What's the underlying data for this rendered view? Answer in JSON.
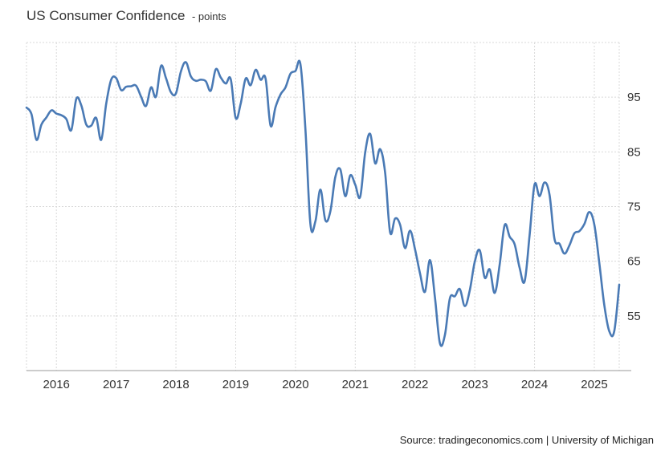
{
  "header": {
    "title": "US Consumer Confidence",
    "unit": "- points"
  },
  "source": "Source: tradingeconomics.com | University of Michigan",
  "colors": {
    "line": "#4a7ab5",
    "grid": "#d9d9d9",
    "axis": "#999999"
  },
  "chart_data": {
    "type": "line",
    "title": "US Consumer Confidence",
    "ylabel": "",
    "xlabel": "",
    "ylim": [
      45,
      105
    ],
    "xlim": [
      "2015-07",
      "2025-06"
    ],
    "grid": true,
    "y_axis_side": "right",
    "x_ticks": [
      "2016",
      "2017",
      "2018",
      "2019",
      "2020",
      "2021",
      "2022",
      "2023",
      "2024",
      "2025"
    ],
    "y_ticks": [
      55,
      65,
      75,
      85,
      95
    ],
    "series": [
      {
        "x": [
          "2015-07",
          "2015-08",
          "2015-09",
          "2015-10",
          "2015-11",
          "2015-12",
          "2016-01",
          "2016-02",
          "2016-03",
          "2016-04",
          "2016-05",
          "2016-06",
          "2016-07",
          "2016-08",
          "2016-09",
          "2016-10",
          "2016-11",
          "2016-12",
          "2017-01",
          "2017-02",
          "2017-03",
          "2017-04",
          "2017-05",
          "2017-06",
          "2017-07",
          "2017-08",
          "2017-09",
          "2017-10",
          "2017-11",
          "2017-12",
          "2018-01",
          "2018-02",
          "2018-03",
          "2018-04",
          "2018-05",
          "2018-06",
          "2018-07",
          "2018-08",
          "2018-09",
          "2018-10",
          "2018-11",
          "2018-12",
          "2019-01",
          "2019-02",
          "2019-03",
          "2019-04",
          "2019-05",
          "2019-06",
          "2019-07",
          "2019-08",
          "2019-09",
          "2019-10",
          "2019-11",
          "2019-12",
          "2020-01",
          "2020-02",
          "2020-03",
          "2020-04",
          "2020-05",
          "2020-06",
          "2020-07",
          "2020-08",
          "2020-09",
          "2020-10",
          "2020-11",
          "2020-12",
          "2021-01",
          "2021-02",
          "2021-03",
          "2021-04",
          "2021-05",
          "2021-06",
          "2021-07",
          "2021-08",
          "2021-09",
          "2021-10",
          "2021-11",
          "2021-12",
          "2022-01",
          "2022-02",
          "2022-03",
          "2022-04",
          "2022-05",
          "2022-06",
          "2022-07",
          "2022-08",
          "2022-09",
          "2022-10",
          "2022-11",
          "2022-12",
          "2023-01",
          "2023-02",
          "2023-03",
          "2023-04",
          "2023-05",
          "2023-06",
          "2023-07",
          "2023-08",
          "2023-09",
          "2023-10",
          "2023-11",
          "2023-12",
          "2024-01",
          "2024-02",
          "2024-03",
          "2024-04",
          "2024-05",
          "2024-06",
          "2024-07",
          "2024-08",
          "2024-09",
          "2024-10",
          "2024-11",
          "2024-12",
          "2025-01",
          "2025-02",
          "2025-03",
          "2025-04",
          "2025-05",
          "2025-06"
        ],
        "values": [
          93.1,
          91.9,
          87.2,
          90.0,
          91.3,
          92.6,
          92.0,
          91.7,
          91.0,
          89.0,
          94.7,
          93.5,
          90.0,
          89.8,
          91.2,
          87.2,
          93.8,
          98.2,
          98.5,
          96.3,
          96.9,
          97.0,
          97.1,
          95.1,
          93.4,
          96.8,
          95.1,
          100.7,
          98.5,
          95.9,
          95.7,
          99.7,
          101.4,
          98.8,
          98.0,
          98.2,
          97.9,
          96.2,
          100.1,
          98.6,
          97.5,
          98.3,
          91.2,
          93.8,
          98.4,
          97.2,
          100.0,
          98.2,
          98.4,
          89.8,
          93.2,
          95.5,
          96.8,
          99.3,
          99.8,
          101.0,
          89.1,
          71.8,
          72.3,
          78.1,
          72.5,
          74.1,
          80.4,
          81.8,
          76.9,
          80.7,
          79.0,
          76.8,
          84.9,
          88.3,
          82.9,
          85.5,
          81.2,
          70.3,
          72.8,
          71.7,
          67.4,
          70.6,
          67.2,
          62.8,
          59.4,
          65.2,
          58.4,
          50.0,
          51.5,
          58.2,
          58.6,
          59.9,
          56.8,
          59.7,
          64.9,
          67.0,
          62.0,
          63.5,
          59.2,
          64.4,
          71.6,
          69.5,
          68.1,
          63.8,
          61.3,
          69.7,
          79.0,
          76.9,
          79.4,
          77.2,
          69.1,
          68.2,
          66.4,
          67.9,
          70.1,
          70.5,
          71.8,
          74.0,
          71.7,
          64.7,
          57.0,
          52.2,
          52.2,
          60.7
        ]
      }
    ]
  }
}
